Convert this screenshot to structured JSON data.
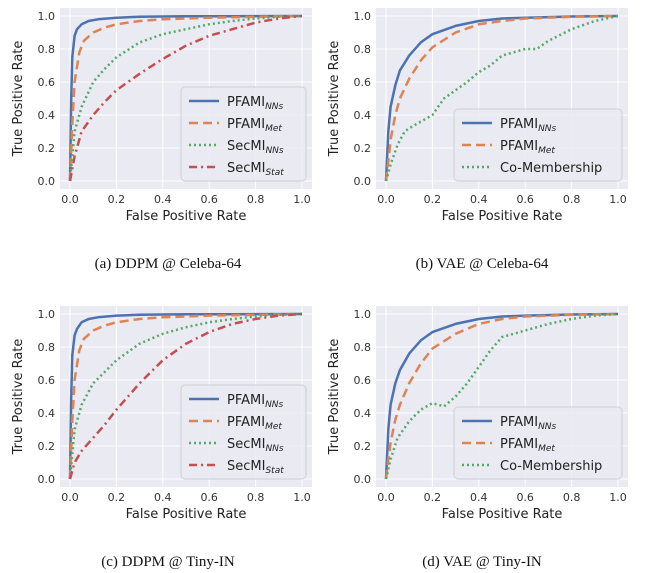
{
  "chart_data": [
    {
      "type": "line",
      "caption": "(a) DDPM @ Celeba-64",
      "xlabel": "False Positive Rate",
      "ylabel": "True Positive Rate",
      "xlim": [
        0,
        1
      ],
      "ylim": [
        0,
        1
      ],
      "xticks": [
        "0.0",
        "0.2",
        "0.4",
        "0.6",
        "0.8",
        "1.0"
      ],
      "yticks": [
        "0.0",
        "0.2",
        "0.4",
        "0.6",
        "0.8",
        "1.0"
      ],
      "grid": true,
      "legend": "lower-right",
      "series": [
        {
          "name": "PFAMI",
          "sub": "NNs",
          "color": "#4c72b0",
          "dash": "solid",
          "x": [
            0,
            0.005,
            0.01,
            0.02,
            0.03,
            0.05,
            0.08,
            0.12,
            0.2,
            0.3,
            0.5,
            0.7,
            1.0
          ],
          "y": [
            0,
            0.5,
            0.75,
            0.88,
            0.92,
            0.95,
            0.97,
            0.98,
            0.99,
            0.995,
            0.998,
            0.999,
            1.0
          ]
        },
        {
          "name": "PFAMI",
          "sub": "Met",
          "color": "#dd8452",
          "dash": "dashed",
          "x": [
            0,
            0.01,
            0.02,
            0.04,
            0.06,
            0.1,
            0.15,
            0.2,
            0.3,
            0.4,
            0.6,
            0.8,
            1.0
          ],
          "y": [
            0,
            0.35,
            0.6,
            0.78,
            0.85,
            0.9,
            0.93,
            0.95,
            0.97,
            0.98,
            0.99,
            0.995,
            1.0
          ]
        },
        {
          "name": "SecMI",
          "sub": "NNs",
          "color": "#55a868",
          "dash": "dotted",
          "x": [
            0,
            0.02,
            0.05,
            0.1,
            0.15,
            0.2,
            0.3,
            0.4,
            0.5,
            0.6,
            0.7,
            0.8,
            0.9,
            1.0
          ],
          "y": [
            0,
            0.3,
            0.45,
            0.6,
            0.68,
            0.75,
            0.84,
            0.89,
            0.92,
            0.95,
            0.97,
            0.985,
            0.995,
            1.0
          ]
        },
        {
          "name": "SecMI",
          "sub": "Stat",
          "color": "#c44e52",
          "dash": "dashdot",
          "x": [
            0,
            0.02,
            0.05,
            0.1,
            0.15,
            0.2,
            0.3,
            0.4,
            0.5,
            0.6,
            0.7,
            0.8,
            0.9,
            1.0
          ],
          "y": [
            0,
            0.15,
            0.3,
            0.4,
            0.48,
            0.55,
            0.65,
            0.74,
            0.82,
            0.88,
            0.92,
            0.96,
            0.985,
            1.0
          ]
        }
      ]
    },
    {
      "type": "line",
      "caption": "(b) VAE @ Celeba-64",
      "xlabel": "False Positive Rate",
      "ylabel": "True Positive Rate",
      "xlim": [
        0,
        1
      ],
      "ylim": [
        0,
        1
      ],
      "xticks": [
        "0.0",
        "0.2",
        "0.4",
        "0.6",
        "0.8",
        "1.0"
      ],
      "yticks": [
        "0.0",
        "0.2",
        "0.4",
        "0.6",
        "0.8",
        "1.0"
      ],
      "grid": true,
      "legend": "lower-right",
      "series": [
        {
          "name": "PFAMI",
          "sub": "NNs",
          "color": "#4c72b0",
          "dash": "solid",
          "x": [
            0,
            0.01,
            0.02,
            0.04,
            0.06,
            0.1,
            0.15,
            0.2,
            0.3,
            0.4,
            0.5,
            0.6,
            0.8,
            1.0
          ],
          "y": [
            0,
            0.3,
            0.45,
            0.58,
            0.67,
            0.76,
            0.84,
            0.89,
            0.94,
            0.97,
            0.985,
            0.99,
            0.997,
            1.0
          ]
        },
        {
          "name": "PFAMI",
          "sub": "Met",
          "color": "#dd8452",
          "dash": "dashed",
          "x": [
            0,
            0.01,
            0.02,
            0.04,
            0.06,
            0.1,
            0.15,
            0.2,
            0.3,
            0.4,
            0.5,
            0.6,
            0.8,
            1.0
          ],
          "y": [
            0,
            0.12,
            0.25,
            0.4,
            0.5,
            0.62,
            0.73,
            0.81,
            0.9,
            0.95,
            0.97,
            0.985,
            0.995,
            1.0
          ]
        },
        {
          "name": "Co-Membership",
          "sub": "",
          "color": "#55a868",
          "dash": "dotted",
          "x": [
            0,
            0.02,
            0.05,
            0.08,
            0.1,
            0.15,
            0.2,
            0.25,
            0.3,
            0.35,
            0.4,
            0.45,
            0.5,
            0.6,
            0.65,
            0.7,
            0.8,
            0.9,
            1.0
          ],
          "y": [
            0,
            0.1,
            0.22,
            0.3,
            0.32,
            0.36,
            0.4,
            0.5,
            0.55,
            0.6,
            0.66,
            0.7,
            0.76,
            0.8,
            0.8,
            0.85,
            0.92,
            0.97,
            1.0
          ]
        }
      ]
    },
    {
      "type": "line",
      "caption": "(c) DDPM @ Tiny-IN",
      "xlabel": "False Positive Rate",
      "ylabel": "True Positive Rate",
      "xlim": [
        0,
        1
      ],
      "ylim": [
        0,
        1
      ],
      "xticks": [
        "0.0",
        "0.2",
        "0.4",
        "0.6",
        "0.8",
        "1.0"
      ],
      "yticks": [
        "0.0",
        "0.2",
        "0.4",
        "0.6",
        "0.8",
        "1.0"
      ],
      "grid": true,
      "legend": "lower-right",
      "series": [
        {
          "name": "PFAMI",
          "sub": "NNs",
          "color": "#4c72b0",
          "dash": "solid",
          "x": [
            0,
            0.005,
            0.01,
            0.02,
            0.03,
            0.05,
            0.08,
            0.12,
            0.2,
            0.3,
            0.5,
            0.7,
            1.0
          ],
          "y": [
            0,
            0.5,
            0.75,
            0.87,
            0.91,
            0.95,
            0.97,
            0.98,
            0.99,
            0.995,
            0.998,
            0.999,
            1.0
          ]
        },
        {
          "name": "PFAMI",
          "sub": "Met",
          "color": "#dd8452",
          "dash": "dashed",
          "x": [
            0,
            0.01,
            0.02,
            0.04,
            0.06,
            0.1,
            0.15,
            0.2,
            0.3,
            0.4,
            0.6,
            0.8,
            1.0
          ],
          "y": [
            0,
            0.35,
            0.6,
            0.78,
            0.85,
            0.9,
            0.93,
            0.95,
            0.97,
            0.98,
            0.99,
            0.995,
            1.0
          ]
        },
        {
          "name": "SecMI",
          "sub": "NNs",
          "color": "#55a868",
          "dash": "dotted",
          "x": [
            0,
            0.02,
            0.05,
            0.1,
            0.15,
            0.2,
            0.3,
            0.4,
            0.5,
            0.6,
            0.7,
            0.8,
            0.9,
            1.0
          ],
          "y": [
            0,
            0.3,
            0.45,
            0.58,
            0.65,
            0.72,
            0.82,
            0.88,
            0.92,
            0.95,
            0.97,
            0.985,
            0.995,
            1.0
          ]
        },
        {
          "name": "SecMI",
          "sub": "Stat",
          "color": "#c44e52",
          "dash": "dashdot",
          "x": [
            0,
            0.02,
            0.05,
            0.1,
            0.15,
            0.2,
            0.3,
            0.4,
            0.5,
            0.6,
            0.7,
            0.8,
            0.9,
            1.0
          ],
          "y": [
            0,
            0.1,
            0.17,
            0.25,
            0.33,
            0.42,
            0.58,
            0.72,
            0.82,
            0.89,
            0.94,
            0.97,
            0.99,
            1.0
          ]
        }
      ]
    },
    {
      "type": "line",
      "caption": "(d) VAE @ Tiny-IN",
      "xlabel": "False Positive Rate",
      "ylabel": "True Positive Rate",
      "xlim": [
        0,
        1
      ],
      "ylim": [
        0,
        1
      ],
      "xticks": [
        "0.0",
        "0.2",
        "0.4",
        "0.6",
        "0.8",
        "1.0"
      ],
      "yticks": [
        "0.0",
        "0.2",
        "0.4",
        "0.6",
        "0.8",
        "1.0"
      ],
      "grid": true,
      "legend": "lower-right",
      "series": [
        {
          "name": "PFAMI",
          "sub": "NNs",
          "color": "#4c72b0",
          "dash": "solid",
          "x": [
            0,
            0.01,
            0.02,
            0.04,
            0.06,
            0.1,
            0.15,
            0.2,
            0.3,
            0.4,
            0.5,
            0.6,
            0.8,
            1.0
          ],
          "y": [
            0,
            0.3,
            0.45,
            0.58,
            0.66,
            0.76,
            0.84,
            0.89,
            0.94,
            0.97,
            0.985,
            0.99,
            0.997,
            1.0
          ]
        },
        {
          "name": "PFAMI",
          "sub": "Met",
          "color": "#dd8452",
          "dash": "dashed",
          "x": [
            0,
            0.01,
            0.02,
            0.04,
            0.06,
            0.1,
            0.15,
            0.2,
            0.3,
            0.4,
            0.5,
            0.6,
            0.8,
            1.0
          ],
          "y": [
            0,
            0.12,
            0.22,
            0.36,
            0.45,
            0.58,
            0.7,
            0.79,
            0.88,
            0.94,
            0.97,
            0.985,
            0.995,
            1.0
          ]
        },
        {
          "name": "Co-Membership",
          "sub": "",
          "color": "#55a868",
          "dash": "dotted",
          "x": [
            0,
            0.02,
            0.05,
            0.1,
            0.15,
            0.2,
            0.25,
            0.3,
            0.35,
            0.4,
            0.45,
            0.5,
            0.6,
            0.7,
            0.8,
            0.9,
            1.0
          ],
          "y": [
            0,
            0.12,
            0.25,
            0.35,
            0.42,
            0.46,
            0.44,
            0.5,
            0.58,
            0.68,
            0.78,
            0.86,
            0.9,
            0.94,
            0.97,
            0.99,
            1.0
          ]
        }
      ]
    }
  ]
}
